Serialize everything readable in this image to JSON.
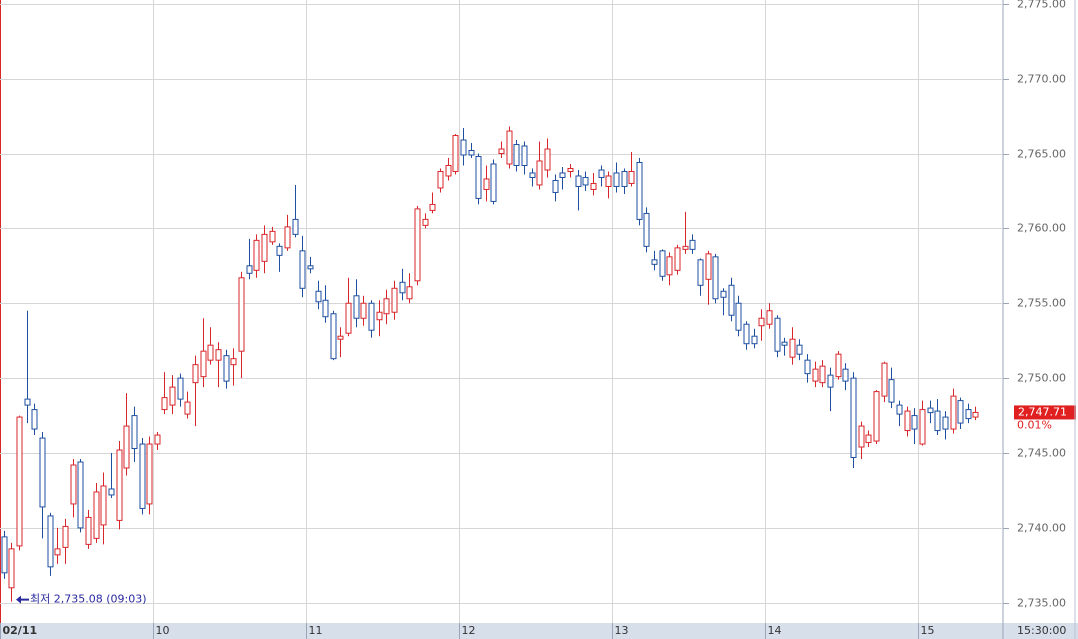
{
  "chart_data": {
    "type": "candlestick",
    "up_color": "#d9262b",
    "down_color": "#1e4fa0",
    "grid": true,
    "open": [
      2739.4,
      2736.0,
      2738.8,
      2748.6,
      2747.9,
      2746.0,
      2740.8,
      2738.2,
      2738.7,
      2741.6,
      2744.4,
      2738.9,
      2739.3,
      2740.2,
      2742.6,
      2740.5,
      2744.0,
      2747.5,
      2745.6,
      2741.6,
      2745.6,
      2747.9,
      2748.2,
      2750.0,
      2747.6,
      2749.7,
      2750.1,
      2751.2,
      2751.2,
      2751.5,
      2750.9,
      2751.8,
      2757.5,
      2757.2,
      2757.8,
      2759.1,
      2758.8,
      2758.7,
      2760.6,
      2758.5,
      2757.5,
      2755.8,
      2755.2,
      2754.3,
      2752.6,
      2753.0,
      2755.5,
      2754.0,
      2755.0,
      2753.9,
      2754.3,
      2754.4,
      2756.4,
      2755.3,
      2756.5,
      2760.2,
      2761.2,
      2762.7,
      2763.5,
      2763.8,
      2765.9,
      2765.2,
      2764.8,
      2762.6,
      2764.3,
      2765.0,
      2764.3,
      2765.6,
      2765.5,
      2763.7,
      2762.9,
      2763.9,
      2763.2,
      2763.7,
      2763.8,
      2763.5,
      2763.4,
      2762.6,
      2763.9,
      2762.8,
      2763.7,
      2763.8,
      2763.0,
      2764.4,
      2761.0,
      2757.9,
      2758.5,
      2756.9,
      2757.2,
      2758.6,
      2759.2,
      2757.9,
      2756.6,
      2758.1,
      2755.8,
      2756.2,
      2755.0,
      2753.6,
      2752.8,
      2753.5,
      2753.6,
      2754.0,
      2752.4,
      2751.4,
      2752.2,
      2751.2,
      2749.8,
      2749.7,
      2750.2,
      2750.1,
      2750.6,
      2750.0,
      2745.4,
      2745.7,
      2745.8,
      2748.8,
      2749.9,
      2748.2,
      2746.5,
      2747.5,
      2745.6,
      2748.0,
      2747.8,
      2747.4,
      2746.6,
      2748.5,
      2747.9,
      2747.4
    ],
    "high": [
      2739.8,
      2739.0,
      2747.5,
      2754.5,
      2748.3,
      2746.4,
      2741.0,
      2740.0,
      2740.6,
      2744.6,
      2744.6,
      2741.2,
      2743.0,
      2743.7,
      2745.0,
      2745.8,
      2749.0,
      2748.1,
      2746.0,
      2746.1,
      2746.4,
      2750.4,
      2750.2,
      2750.3,
      2749.1,
      2751.5,
      2754.0,
      2753.4,
      2752.4,
      2751.9,
      2752.0,
      2757.1,
      2759.3,
      2759.6,
      2760.2,
      2760.1,
      2759.0,
      2760.9,
      2762.9,
      2759.5,
      2758.1,
      2756.5,
      2756.2,
      2754.5,
      2753.4,
      2756.7,
      2756.6,
      2755.5,
      2755.2,
      2755.2,
      2755.9,
      2756.5,
      2757.3,
      2757.0,
      2761.5,
      2761.0,
      2762.4,
      2764.0,
      2764.7,
      2766.3,
      2766.7,
      2765.7,
      2765.0,
      2764.2,
      2764.6,
      2765.8,
      2766.8,
      2765.9,
      2765.8,
      2764.0,
      2765.8,
      2766.0,
      2763.6,
      2764.1,
      2764.3,
      2763.9,
      2763.8,
      2763.7,
      2764.2,
      2763.8,
      2764.4,
      2764.0,
      2765.1,
      2764.7,
      2761.4,
      2758.5,
      2758.6,
      2758.4,
      2758.9,
      2761.1,
      2759.6,
      2758.0,
      2758.5,
      2758.3,
      2756.0,
      2756.7,
      2755.5,
      2753.8,
      2753.3,
      2754.6,
      2755.0,
      2754.2,
      2752.7,
      2753.4,
      2752.6,
      2751.6,
      2751.1,
      2751.2,
      2750.7,
      2751.8,
      2751.0,
      2750.4,
      2747.1,
      2746.5,
      2749.2,
      2751.1,
      2750.7,
      2748.5,
      2748.1,
      2748.0,
      2748.5,
      2748.5,
      2748.6,
      2747.8,
      2749.3,
      2748.7,
      2748.3,
      2748.1
    ],
    "low": [
      2736.6,
      2735.08,
      2738.5,
      2747.0,
      2746.2,
      2739.3,
      2736.8,
      2737.6,
      2737.6,
      2740.7,
      2739.7,
      2738.6,
      2739.0,
      2738.9,
      2742.0,
      2739.9,
      2743.5,
      2744.4,
      2740.9,
      2740.9,
      2745.2,
      2747.6,
      2747.6,
      2748.1,
      2747.3,
      2746.8,
      2749.4,
      2750.9,
      2749.4,
      2749.3,
      2749.5,
      2750.0,
      2756.6,
      2756.7,
      2757.0,
      2758.9,
      2757.1,
      2758.5,
      2759.4,
      2755.4,
      2757.0,
      2754.6,
      2753.7,
      2751.2,
      2751.4,
      2752.8,
      2753.4,
      2753.5,
      2752.7,
      2752.8,
      2753.6,
      2753.9,
      2755.2,
      2755.0,
      2756.2,
      2760.0,
      2761.0,
      2762.4,
      2763.2,
      2763.6,
      2764.2,
      2764.7,
      2761.6,
      2761.8,
      2761.6,
      2764.7,
      2764.0,
      2763.8,
      2763.6,
      2762.8,
      2762.6,
      2763.4,
      2761.8,
      2762.6,
      2763.4,
      2761.2,
      2762.5,
      2762.2,
      2762.8,
      2762.0,
      2762.4,
      2762.3,
      2762.8,
      2760.2,
      2758.4,
      2757.2,
      2756.5,
      2756.2,
      2756.9,
      2758.3,
      2758.3,
      2755.5,
      2754.9,
      2755.0,
      2754.2,
      2753.8,
      2752.8,
      2751.9,
      2752.0,
      2752.5,
      2753.3,
      2751.4,
      2751.5,
      2750.9,
      2751.2,
      2749.7,
      2749.4,
      2749.4,
      2747.8,
      2749.9,
      2749.2,
      2744.0,
      2744.6,
      2745.4,
      2745.6,
      2748.4,
      2748.0,
      2746.8,
      2746.1,
      2745.6,
      2745.5,
      2747.0,
      2746.2,
      2745.9,
      2746.3,
      2746.6,
      2747.0,
      2747.2
    ],
    "close": [
      2737.0,
      2738.6,
      2747.4,
      2748.2,
      2746.6,
      2741.4,
      2737.4,
      2738.6,
      2740.1,
      2744.2,
      2740.0,
      2740.7,
      2742.4,
      2742.8,
      2742.2,
      2745.2,
      2746.8,
      2745.3,
      2741.3,
      2745.6,
      2746.2,
      2748.7,
      2749.4,
      2748.6,
      2748.4,
      2750.9,
      2751.8,
      2752.2,
      2751.9,
      2749.8,
      2751.3,
      2756.7,
      2757.0,
      2759.2,
      2759.6,
      2759.8,
      2758.2,
      2760.1,
      2759.6,
      2756.0,
      2757.3,
      2755.1,
      2754.1,
      2751.3,
      2752.8,
      2755.0,
      2754.0,
      2755.0,
      2753.2,
      2754.4,
      2755.3,
      2756.0,
      2755.7,
      2756.1,
      2761.3,
      2760.6,
      2761.6,
      2763.8,
      2764.2,
      2766.2,
      2764.9,
      2764.9,
      2762.0,
      2763.3,
      2761.8,
      2765.3,
      2766.5,
      2764.2,
      2764.2,
      2763.4,
      2764.5,
      2765.3,
      2762.4,
      2763.4,
      2764.0,
      2762.8,
      2762.9,
      2763.0,
      2763.4,
      2763.5,
      2762.8,
      2762.8,
      2763.8,
      2760.6,
      2758.8,
      2757.6,
      2756.8,
      2758.1,
      2758.7,
      2758.8,
      2758.6,
      2756.2,
      2758.3,
      2755.3,
      2755.4,
      2754.2,
      2753.2,
      2752.3,
      2752.3,
      2754.0,
      2754.5,
      2751.8,
      2752.2,
      2752.6,
      2751.6,
      2750.3,
      2750.6,
      2750.8,
      2749.4,
      2751.6,
      2749.8,
      2744.7,
      2746.8,
      2746.2,
      2749.1,
      2751.0,
      2748.4,
      2747.6,
      2747.8,
      2746.6,
      2747.9,
      2747.7,
      2746.5,
      2746.6,
      2748.8,
      2747.0,
      2747.3,
      2747.71
    ],
    "xlim": [
      -0.5,
      130.6
    ],
    "xticks": [
      {
        "value": -0.5,
        "label": "02/11"
      },
      {
        "value": 19.5,
        "label": "10"
      },
      {
        "value": 39.5,
        "label": "11"
      },
      {
        "value": 59.5,
        "label": "12"
      },
      {
        "value": 79.5,
        "label": "13"
      },
      {
        "value": 99.5,
        "label": "14"
      },
      {
        "value": 119.5,
        "label": "15"
      }
    ],
    "end_time_label": "15:30:00",
    "ylim": [
      2733.65,
      2775.25
    ],
    "yticks": [
      {
        "value": 2735,
        "label": "2,735.00"
      },
      {
        "value": 2740,
        "label": "2,740.00"
      },
      {
        "value": 2745,
        "label": "2,745.00"
      },
      {
        "value": 2750,
        "label": "2,750.00"
      },
      {
        "value": 2755,
        "label": "2,755.00"
      },
      {
        "value": 2760,
        "label": "2,760.00"
      },
      {
        "value": 2765,
        "label": "2,765.00"
      },
      {
        "value": 2770,
        "label": "2,770.00"
      },
      {
        "value": 2775,
        "label": "2,775.00"
      }
    ],
    "last_price": {
      "value": 2747.71,
      "label": "2,747.71"
    },
    "change_label": "0.01%",
    "low_annotation": "최저 2,735.08 (09:03)"
  }
}
